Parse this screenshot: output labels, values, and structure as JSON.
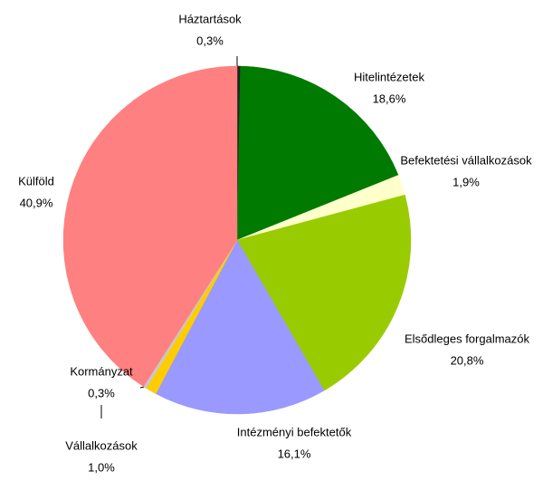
{
  "chart_data": {
    "type": "pie",
    "categories": [
      "Háztartások",
      "Hitelintézetek",
      "Befektetési vállalkozások",
      "Elsődleges forgalmazók",
      "Intézményi befektetők",
      "Vállalkozások",
      "Kormányzat",
      "Külföld"
    ],
    "values": [
      0.3,
      18.6,
      1.9,
      20.8,
      16.1,
      1.0,
      0.3,
      40.9
    ],
    "value_labels": [
      "0,3%",
      "18,6%",
      "1,9%",
      "20,8%",
      "16,1%",
      "1,0%",
      "0,3%",
      "40,9%"
    ],
    "colors": [
      "#222222",
      "#007a00",
      "#ffffcc",
      "#99cc00",
      "#9999ff",
      "#ffcc00",
      "#c8c8c8",
      "#ff8080"
    ]
  }
}
